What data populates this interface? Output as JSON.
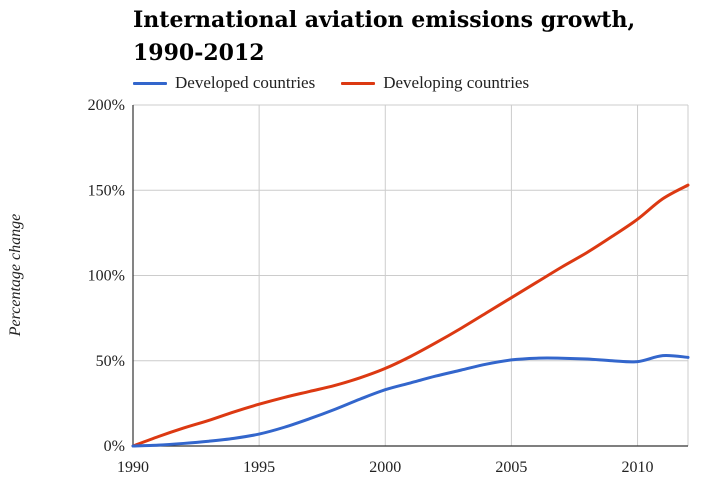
{
  "chart_data": {
    "type": "line",
    "title": "International aviation emissions growth, 1990-2012",
    "xlabel": "",
    "ylabel": "Percentage change",
    "xlim": [
      1990,
      2012
    ],
    "ylim": [
      0,
      200
    ],
    "x_ticks": [
      "1990",
      "1995",
      "2000",
      "2005",
      "2010"
    ],
    "x_tick_values": [
      1990,
      1995,
      2000,
      2005,
      2010
    ],
    "y_ticks": [
      "0%",
      "50%",
      "100%",
      "150%",
      "200%"
    ],
    "y_tick_values": [
      0,
      50,
      100,
      150,
      200
    ],
    "grid": true,
    "legend_position": "top-left",
    "x": [
      1990,
      1991,
      1992,
      1993,
      1994,
      1995,
      1996,
      1997,
      1998,
      1999,
      2000,
      2001,
      2002,
      2003,
      2004,
      2005,
      2006,
      2007,
      2008,
      2009,
      2010,
      2011,
      2012
    ],
    "series": [
      {
        "name": "Developed countries",
        "color": "#3366cc",
        "values": [
          0,
          0.5,
          1.5,
          2.8,
          4.5,
          7,
          11,
          16,
          21.5,
          27.5,
          33,
          37,
          41,
          44.5,
          48,
          50.5,
          51.5,
          51.5,
          51,
          50,
          49.5,
          53,
          52
        ]
      },
      {
        "name": "Developing countries",
        "color": "#dc3912",
        "values": [
          0,
          5.5,
          10.5,
          15,
          20,
          24.5,
          28.5,
          32,
          35.5,
          40,
          45.5,
          52.5,
          60.5,
          69,
          78,
          87,
          96,
          105,
          113.5,
          123,
          133,
          145,
          153
        ]
      }
    ]
  }
}
